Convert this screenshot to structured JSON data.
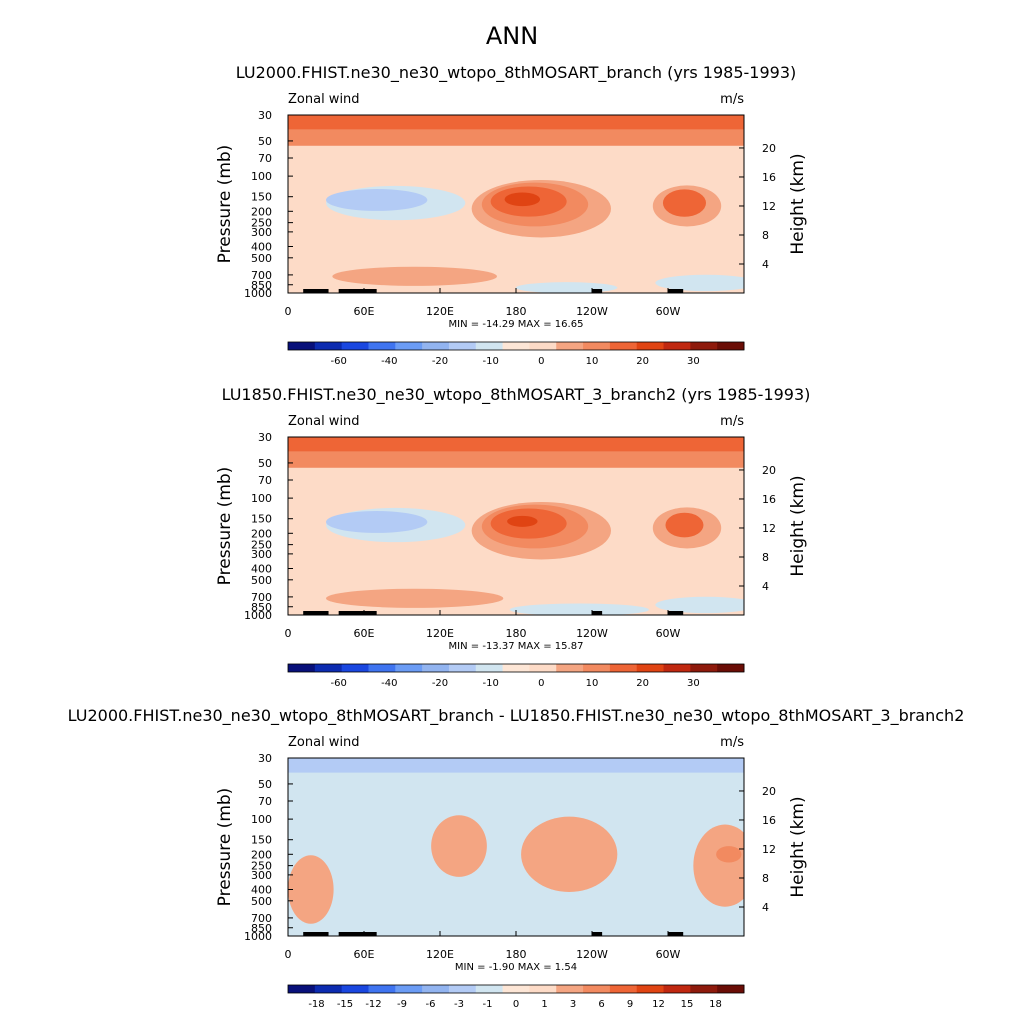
{
  "figure_title": "ANN",
  "chart_data": [
    {
      "type": "heatmap",
      "title": "LU2000.FHIST.ne30_ne30_wtopo_8thMOSART_branch (yrs 1985-1993)",
      "left_label": "Zonal wind",
      "right_label": "m/s",
      "xlabel": "",
      "ylabel": "Pressure (mb)",
      "y2label": "Height (km)",
      "x_ticks": [
        "0",
        "60E",
        "120E",
        "180",
        "120W",
        "60W"
      ],
      "y_ticks": [
        "30",
        "50",
        "70",
        "100",
        "150",
        "200",
        "250",
        "300",
        "400",
        "500",
        "700",
        "850",
        "1000"
      ],
      "y2_ticks": [
        "20",
        "16",
        "12",
        "8",
        "4"
      ],
      "xlim": [
        0,
        360
      ],
      "ylim_mb": [
        1000,
        30
      ],
      "y_scale": "log",
      "stats": "MIN = -14.29  MAX =  16.65",
      "min": -14.29,
      "max": 16.65,
      "colorbar_labels": [
        "-60",
        "-40",
        "-20",
        "-10",
        "0",
        "10",
        "20",
        "30"
      ],
      "colors": [
        "#fddbc7",
        "#f4a582",
        "#f28a60",
        "#ee6536",
        "#e04413",
        "#d1e5f0",
        "#b3cbf5",
        "#92b4f0",
        "#000000"
      ],
      "features": [
        {
          "kind": "band",
          "p_top": 30,
          "p_bot": 40,
          "level": 3
        },
        {
          "kind": "band",
          "p_top": 40,
          "p_bot": 55,
          "level": 2
        },
        {
          "kind": "blob",
          "lon": 85,
          "p": 170,
          "dlon": 55,
          "dp": 0.25,
          "level": -1
        },
        {
          "kind": "blob",
          "lon": 70,
          "p": 160,
          "dlon": 40,
          "dp": 0.16,
          "level": -2
        },
        {
          "kind": "blob",
          "lon": 200,
          "p": 190,
          "dlon": 55,
          "dp": 0.42,
          "level": 1
        },
        {
          "kind": "blob",
          "lon": 195,
          "p": 175,
          "dlon": 42,
          "dp": 0.32,
          "level": 2
        },
        {
          "kind": "blob",
          "lon": 190,
          "p": 165,
          "dlon": 30,
          "dp": 0.22,
          "level": 3
        },
        {
          "kind": "blob",
          "lon": 185,
          "p": 158,
          "dlon": 14,
          "dp": 0.1,
          "level": 4
        },
        {
          "kind": "blob",
          "lon": 315,
          "p": 180,
          "dlon": 27,
          "dp": 0.3,
          "level": 1
        },
        {
          "kind": "blob",
          "lon": 313,
          "p": 170,
          "dlon": 17,
          "dp": 0.2,
          "level": 3
        },
        {
          "kind": "blob",
          "lon": 100,
          "p": 720,
          "dlon": 65,
          "dp": 0.14,
          "level": 1
        },
        {
          "kind": "blob",
          "lon": 220,
          "p": 900,
          "dlon": 40,
          "dp": 0.08,
          "level": -1
        },
        {
          "kind": "blob",
          "lon": 330,
          "p": 820,
          "dlon": 40,
          "dp": 0.12,
          "level": -1
        }
      ]
    },
    {
      "type": "heatmap",
      "title": "LU1850.FHIST.ne30_ne30_wtopo_8thMOSART_3_branch2 (yrs 1985-1993)",
      "left_label": "Zonal wind",
      "right_label": "m/s",
      "xlabel": "",
      "ylabel": "Pressure (mb)",
      "y2label": "Height (km)",
      "x_ticks": [
        "0",
        "60E",
        "120E",
        "180",
        "120W",
        "60W"
      ],
      "y_ticks": [
        "30",
        "50",
        "70",
        "100",
        "150",
        "200",
        "250",
        "300",
        "400",
        "500",
        "700",
        "850",
        "1000"
      ],
      "y2_ticks": [
        "20",
        "16",
        "12",
        "8",
        "4"
      ],
      "xlim": [
        0,
        360
      ],
      "ylim_mb": [
        1000,
        30
      ],
      "y_scale": "log",
      "stats": "MIN = -13.37  MAX =  15.87",
      "min": -13.37,
      "max": 15.87,
      "colorbar_labels": [
        "-60",
        "-40",
        "-20",
        "-10",
        "0",
        "10",
        "20",
        "30"
      ],
      "colors": [
        "#fddbc7",
        "#f4a582",
        "#f28a60",
        "#ee6536",
        "#e04413",
        "#d1e5f0",
        "#b3cbf5",
        "#92b4f0",
        "#000000"
      ],
      "features": [
        {
          "kind": "band",
          "p_top": 30,
          "p_bot": 40,
          "level": 3
        },
        {
          "kind": "band",
          "p_top": 40,
          "p_bot": 55,
          "level": 2
        },
        {
          "kind": "blob",
          "lon": 85,
          "p": 170,
          "dlon": 55,
          "dp": 0.25,
          "level": -1
        },
        {
          "kind": "blob",
          "lon": 70,
          "p": 160,
          "dlon": 40,
          "dp": 0.16,
          "level": -2
        },
        {
          "kind": "blob",
          "lon": 200,
          "p": 190,
          "dlon": 55,
          "dp": 0.42,
          "level": 1
        },
        {
          "kind": "blob",
          "lon": 195,
          "p": 175,
          "dlon": 42,
          "dp": 0.32,
          "level": 2
        },
        {
          "kind": "blob",
          "lon": 190,
          "p": 165,
          "dlon": 30,
          "dp": 0.22,
          "level": 3
        },
        {
          "kind": "blob",
          "lon": 185,
          "p": 158,
          "dlon": 12,
          "dp": 0.08,
          "level": 4
        },
        {
          "kind": "blob",
          "lon": 315,
          "p": 180,
          "dlon": 27,
          "dp": 0.3,
          "level": 1
        },
        {
          "kind": "blob",
          "lon": 313,
          "p": 170,
          "dlon": 15,
          "dp": 0.18,
          "level": 3
        },
        {
          "kind": "blob",
          "lon": 100,
          "p": 720,
          "dlon": 70,
          "dp": 0.14,
          "level": 1
        },
        {
          "kind": "blob",
          "lon": 230,
          "p": 900,
          "dlon": 55,
          "dp": 0.09,
          "level": -1
        },
        {
          "kind": "blob",
          "lon": 330,
          "p": 820,
          "dlon": 40,
          "dp": 0.12,
          "level": -1
        }
      ]
    },
    {
      "type": "heatmap",
      "title": "LU2000.FHIST.ne30_ne30_wtopo_8thMOSART_branch - LU1850.FHIST.ne30_ne30_wtopo_8thMOSART_3_branch2",
      "left_label": "Zonal wind",
      "right_label": "m/s",
      "xlabel": "",
      "ylabel": "Pressure (mb)",
      "y2label": "Height (km)",
      "x_ticks": [
        "0",
        "60E",
        "120E",
        "180",
        "120W",
        "60W"
      ],
      "y_ticks": [
        "30",
        "50",
        "70",
        "100",
        "150",
        "200",
        "250",
        "300",
        "400",
        "500",
        "700",
        "850",
        "1000"
      ],
      "y2_ticks": [
        "20",
        "16",
        "12",
        "8",
        "4"
      ],
      "xlim": [
        0,
        360
      ],
      "ylim_mb": [
        1000,
        30
      ],
      "y_scale": "log",
      "stats": "MIN = -1.90  MAX =  1.54",
      "min": -1.9,
      "max": 1.54,
      "colorbar_labels": [
        "-18",
        "-15",
        "-12",
        "-9",
        "-6",
        "-3",
        "-1",
        "0",
        "1",
        "3",
        "6",
        "9",
        "12",
        "15",
        "18"
      ],
      "colors": [
        "#fddbc7",
        "#f4a582",
        "#f28a60",
        "#ee6536",
        "#e04413",
        "#d1e5f0",
        "#b3cbf5",
        "#92b4f0",
        "#000000"
      ],
      "background_level": -1,
      "features": [
        {
          "kind": "band",
          "p_top": 30,
          "p_bot": 40,
          "level": -2
        },
        {
          "kind": "blob",
          "lon": 135,
          "p": 170,
          "dlon": 22,
          "dp": 0.45,
          "level": 1
        },
        {
          "kind": "blob",
          "lon": 222,
          "p": 200,
          "dlon": 38,
          "dp": 0.55,
          "level": 1
        },
        {
          "kind": "blob",
          "lon": 345,
          "p": 250,
          "dlon": 25,
          "dp": 0.6,
          "level": 1
        },
        {
          "kind": "blob",
          "lon": 18,
          "p": 400,
          "dlon": 18,
          "dp": 0.5,
          "level": 1
        },
        {
          "kind": "blob",
          "lon": 348,
          "p": 200,
          "dlon": 10,
          "dp": 0.12,
          "level": 2
        }
      ]
    }
  ]
}
